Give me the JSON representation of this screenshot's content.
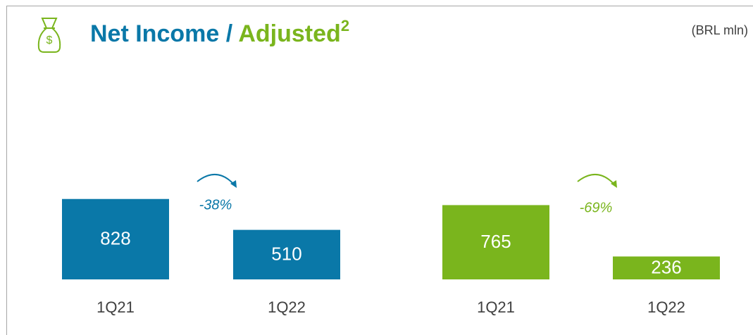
{
  "header": {
    "title_main": "Net Income /",
    "title_adjusted": "Adjusted",
    "title_superscript": "2",
    "unit": "(BRL mln)"
  },
  "chart_data": [
    {
      "type": "bar",
      "name": "Net Income",
      "categories": [
        "1Q21",
        "1Q22"
      ],
      "values": [
        828,
        510
      ],
      "color": "#0a78a8",
      "change_annotation": "-38%"
    },
    {
      "type": "bar",
      "name": "Adjusted",
      "categories": [
        "1Q21",
        "1Q22"
      ],
      "values": [
        765,
        236
      ],
      "color": "#7ab51d",
      "change_annotation": "-69%"
    }
  ]
}
